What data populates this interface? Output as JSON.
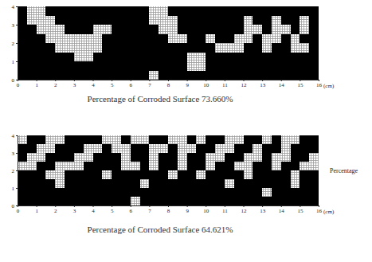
{
  "chart_data": [
    {
      "type": "heatmap",
      "title": "Percentage of Corroded Surface 73.660%",
      "x_label": "(cm)",
      "xlim": [
        0,
        16
      ],
      "xticks": [
        0,
        1,
        2,
        3,
        4,
        5,
        6,
        7,
        8,
        9,
        10,
        11,
        12,
        13,
        14,
        15,
        16
      ],
      "ylim": [
        0,
        4
      ],
      "yticks": [
        0,
        1,
        2,
        3,
        4
      ],
      "color": "#000000",
      "cells": [
        [
          1,
          0,
          0,
          1,
          1,
          1,
          1,
          1,
          1,
          1,
          1,
          1,
          1,
          1,
          0,
          0,
          1,
          1,
          1,
          1,
          1,
          1,
          1,
          1,
          1,
          1,
          1,
          1,
          1,
          1,
          1,
          1
        ],
        [
          1,
          0,
          0,
          0,
          1,
          1,
          1,
          1,
          1,
          1,
          1,
          1,
          1,
          1,
          0,
          0,
          0,
          1,
          1,
          1,
          1,
          1,
          1,
          1,
          0,
          1,
          1,
          0,
          1,
          1,
          0,
          1
        ],
        [
          1,
          1,
          0,
          0,
          0,
          1,
          1,
          1,
          0,
          0,
          1,
          1,
          1,
          1,
          1,
          0,
          0,
          1,
          1,
          1,
          1,
          1,
          1,
          1,
          0,
          0,
          1,
          0,
          0,
          1,
          0,
          1
        ],
        [
          1,
          1,
          1,
          0,
          0,
          0,
          0,
          0,
          0,
          1,
          1,
          1,
          1,
          1,
          1,
          1,
          0,
          0,
          1,
          1,
          0,
          1,
          1,
          0,
          0,
          1,
          0,
          0,
          1,
          0,
          1,
          1
        ],
        [
          1,
          1,
          1,
          1,
          0,
          0,
          0,
          0,
          0,
          1,
          1,
          1,
          1,
          1,
          1,
          1,
          1,
          1,
          1,
          1,
          1,
          0,
          0,
          0,
          1,
          1,
          0,
          1,
          1,
          0,
          0,
          1
        ],
        [
          1,
          1,
          1,
          1,
          1,
          1,
          0,
          0,
          1,
          1,
          1,
          1,
          1,
          1,
          1,
          1,
          1,
          1,
          0,
          0,
          1,
          1,
          1,
          1,
          1,
          1,
          1,
          1,
          1,
          1,
          1,
          1
        ],
        [
          1,
          1,
          1,
          1,
          1,
          1,
          1,
          1,
          1,
          1,
          1,
          1,
          1,
          1,
          1,
          1,
          1,
          1,
          0,
          0,
          1,
          1,
          1,
          1,
          1,
          1,
          1,
          1,
          1,
          1,
          1,
          1
        ],
        [
          1,
          1,
          1,
          1,
          1,
          1,
          1,
          1,
          1,
          1,
          1,
          1,
          1,
          1,
          0,
          1,
          1,
          1,
          1,
          1,
          1,
          1,
          1,
          1,
          1,
          1,
          1,
          1,
          1,
          1,
          1,
          1
        ]
      ]
    },
    {
      "type": "heatmap",
      "title": "Percentage of Corroded Surface 64.621%",
      "x_label": "(cm)",
      "annotation": "Percentage",
      "xlim": [
        0,
        16
      ],
      "xticks": [
        0,
        1,
        2,
        3,
        4,
        5,
        6,
        7,
        8,
        9,
        10,
        11,
        12,
        13,
        14,
        15,
        16
      ],
      "ylim": [
        0,
        4
      ],
      "yticks": [
        0,
        1,
        2,
        3,
        4
      ],
      "color": "#000000",
      "cells": [
        [
          0,
          1,
          1,
          0,
          0,
          1,
          1,
          1,
          1,
          0,
          0,
          1,
          0,
          0,
          1,
          1,
          0,
          0,
          1,
          0,
          1,
          1,
          0,
          0,
          1,
          1,
          0,
          1,
          0,
          0,
          1,
          1
        ],
        [
          1,
          1,
          0,
          0,
          1,
          1,
          1,
          0,
          0,
          1,
          0,
          0,
          1,
          1,
          0,
          0,
          1,
          0,
          0,
          1,
          1,
          0,
          0,
          1,
          1,
          0,
          1,
          1,
          0,
          1,
          1,
          1
        ],
        [
          1,
          0,
          0,
          1,
          1,
          1,
          0,
          0,
          1,
          1,
          1,
          0,
          1,
          1,
          0,
          1,
          1,
          0,
          1,
          1,
          0,
          0,
          1,
          1,
          0,
          0,
          1,
          0,
          0,
          1,
          1,
          0
        ],
        [
          0,
          0,
          1,
          1,
          0,
          0,
          0,
          1,
          1,
          1,
          1,
          0,
          0,
          1,
          0,
          1,
          1,
          0,
          1,
          1,
          0,
          1,
          1,
          0,
          0,
          1,
          1,
          0,
          1,
          1,
          0,
          0
        ],
        [
          1,
          1,
          1,
          0,
          0,
          1,
          1,
          1,
          1,
          0,
          1,
          1,
          1,
          1,
          1,
          1,
          0,
          1,
          1,
          0,
          1,
          1,
          1,
          1,
          0,
          1,
          1,
          1,
          1,
          0,
          1,
          1
        ],
        [
          1,
          1,
          1,
          1,
          0,
          1,
          1,
          1,
          1,
          1,
          1,
          1,
          1,
          0,
          1,
          1,
          1,
          1,
          1,
          1,
          1,
          1,
          0,
          1,
          1,
          1,
          1,
          1,
          1,
          0,
          1,
          1
        ],
        [
          1,
          1,
          1,
          1,
          1,
          1,
          1,
          1,
          1,
          1,
          1,
          1,
          1,
          1,
          1,
          1,
          1,
          1,
          1,
          1,
          1,
          1,
          1,
          1,
          1,
          1,
          0,
          1,
          1,
          1,
          1,
          1
        ],
        [
          1,
          1,
          1,
          1,
          1,
          1,
          1,
          1,
          1,
          1,
          1,
          1,
          0,
          1,
          1,
          1,
          1,
          1,
          1,
          1,
          1,
          1,
          1,
          1,
          1,
          1,
          1,
          1,
          1,
          1,
          1,
          1
        ]
      ]
    }
  ]
}
